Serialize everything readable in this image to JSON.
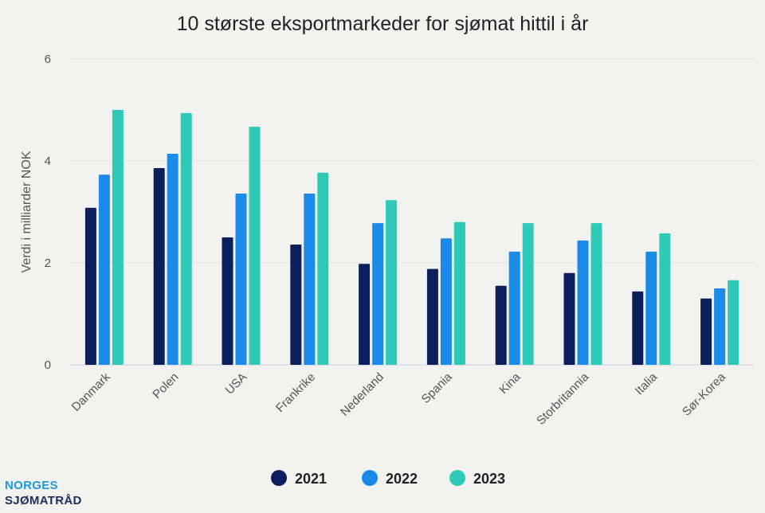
{
  "chart_data": {
    "type": "bar",
    "title": "10 største eksportmarkeder for sjømat hittil i år",
    "xlabel": "",
    "ylabel": "Verdi i milliarder NOK",
    "ylim": [
      0,
      6
    ],
    "yticks": [
      0,
      2,
      4,
      6
    ],
    "grid": true,
    "legend_position": "bottom",
    "categories": [
      "Danmark",
      "Polen",
      "USA",
      "Frankrike",
      "Nederland",
      "Spania",
      "Kina",
      "Storbritannia",
      "Italia",
      "Sør-Korea"
    ],
    "series": [
      {
        "name": "2021",
        "color": "#0b1f5c",
        "values": [
          3.08,
          3.86,
          2.5,
          2.36,
          1.98,
          1.88,
          1.55,
          1.8,
          1.44,
          1.3
        ]
      },
      {
        "name": "2022",
        "color": "#1a8be8",
        "values": [
          3.73,
          4.14,
          3.36,
          3.36,
          2.78,
          2.48,
          2.22,
          2.44,
          2.22,
          1.5
        ]
      },
      {
        "name": "2023",
        "color": "#2fc9b8",
        "values": [
          5.0,
          4.94,
          4.67,
          3.77,
          3.23,
          2.8,
          2.78,
          2.78,
          2.58,
          1.66
        ]
      }
    ]
  },
  "logo": {
    "line1": "NORGES",
    "line2": "SJØMATRÅD"
  }
}
